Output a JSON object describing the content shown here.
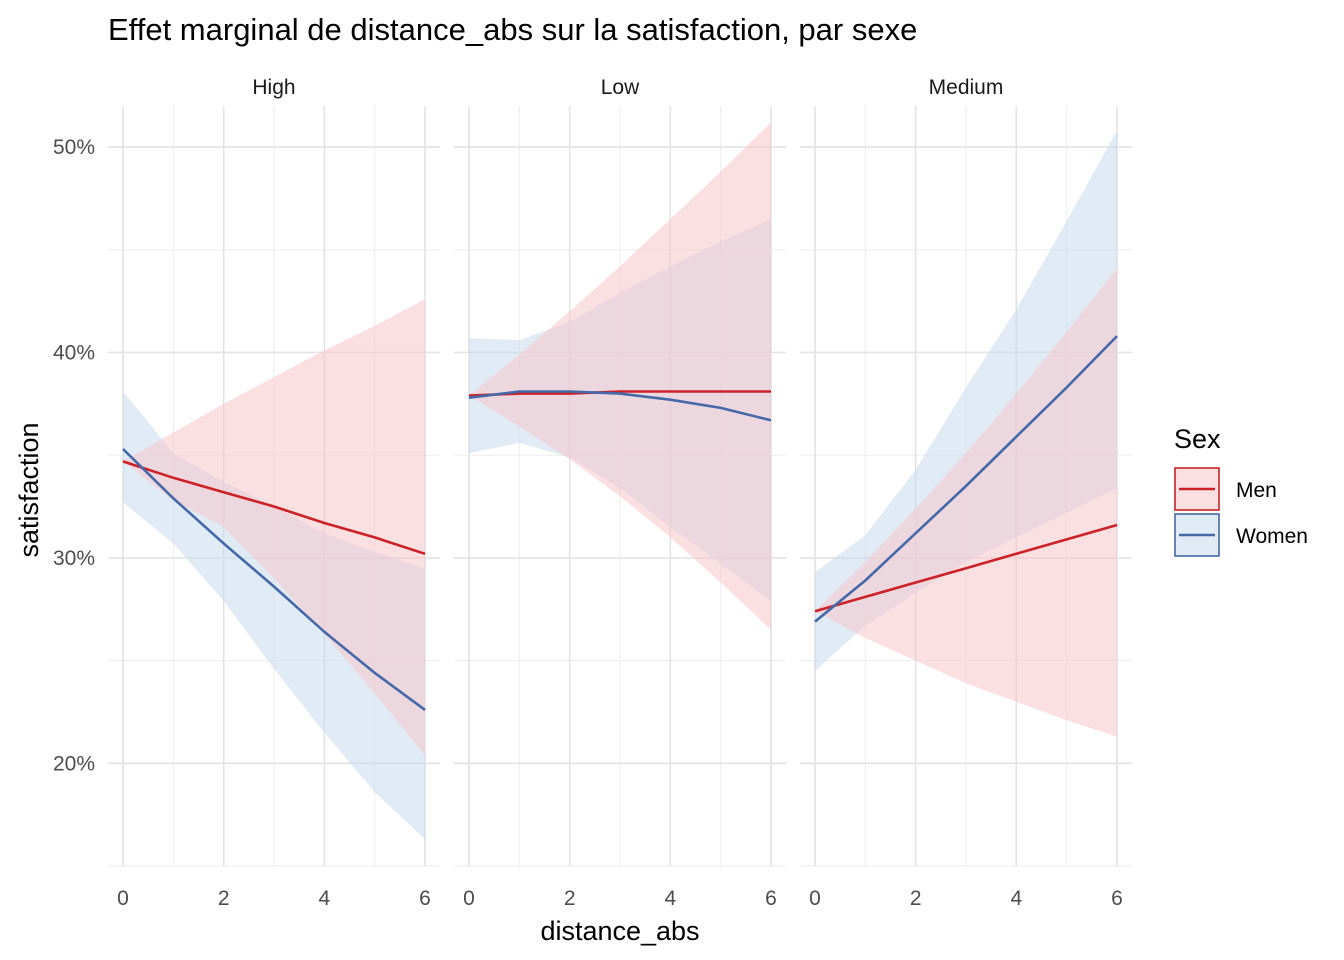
{
  "chart_data": {
    "type": "line",
    "title": "Effet marginal de distance_abs sur la satisfaction, par sexe",
    "xlabel": "distance_abs",
    "ylabel": "satisfaction",
    "xlim": [
      0,
      6
    ],
    "ylim": [
      15,
      52
    ],
    "x_ticks": [
      0,
      2,
      4,
      6
    ],
    "y_ticks": [
      20,
      30,
      40,
      50
    ],
    "y_tick_labels": [
      "20%",
      "30%",
      "40%",
      "50%"
    ],
    "grid": true,
    "legend": {
      "title": "Sex",
      "placement": "right",
      "entries": [
        {
          "label": "Men",
          "color": "#cb2127",
          "fill": "#f8c6cb"
        },
        {
          "label": "Women",
          "color": "#4468a8",
          "fill": "#c9daed"
        }
      ]
    },
    "facets": [
      {
        "panel": "High",
        "series": [
          {
            "name": "Men",
            "x": [
              0,
              1,
              2,
              3,
              4,
              5,
              6
            ],
            "y": [
              34.7,
              33.9,
              33.2,
              32.5,
              31.7,
              31.0,
              30.2
            ],
            "lower": [
              34.7,
              32.8,
              31.5,
              29.0,
              26.3,
              23.4,
              20.4
            ],
            "upper": [
              34.7,
              36.1,
              37.5,
              38.8,
              40.1,
              41.3,
              42.6
            ]
          },
          {
            "name": "Women",
            "x": [
              0,
              1,
              2,
              3,
              4,
              5,
              6
            ],
            "y": [
              35.3,
              32.9,
              30.7,
              28.6,
              26.4,
              24.4,
              22.6
            ],
            "lower": [
              32.7,
              30.7,
              27.9,
              24.6,
              21.5,
              18.6,
              16.3
            ],
            "upper": [
              38.1,
              35.1,
              33.7,
              32.5,
              31.2,
              30.3,
              29.5
            ]
          }
        ]
      },
      {
        "panel": "Low",
        "series": [
          {
            "name": "Men",
            "x": [
              0,
              1,
              2,
              3,
              4,
              5,
              6
            ],
            "y": [
              37.9,
              38.0,
              38.0,
              38.1,
              38.1,
              38.1,
              38.1
            ],
            "lower": [
              37.9,
              36.4,
              34.8,
              33.0,
              31.0,
              28.8,
              26.5
            ],
            "upper": [
              37.9,
              39.9,
              42.0,
              44.2,
              46.5,
              48.8,
              51.2
            ]
          },
          {
            "name": "Women",
            "x": [
              0,
              1,
              2,
              3,
              4,
              5,
              6
            ],
            "y": [
              37.8,
              38.1,
              38.1,
              38.0,
              37.7,
              37.3,
              36.7
            ],
            "lower": [
              35.1,
              35.6,
              34.9,
              33.4,
              31.5,
              29.7,
              27.9
            ],
            "upper": [
              40.7,
              40.6,
              41.5,
              42.9,
              44.2,
              45.4,
              46.5
            ]
          }
        ]
      },
      {
        "panel": "Medium",
        "series": [
          {
            "name": "Men",
            "x": [
              0,
              1,
              2,
              3,
              4,
              5,
              6
            ],
            "y": [
              27.4,
              28.1,
              28.8,
              29.5,
              30.2,
              30.9,
              31.6
            ],
            "lower": [
              27.4,
              26.1,
              25.0,
              23.9,
              23.0,
              22.1,
              21.3
            ],
            "upper": [
              27.4,
              29.8,
              32.4,
              35.1,
              38.0,
              41.0,
              44.1
            ]
          },
          {
            "name": "Women",
            "x": [
              0,
              1,
              2,
              3,
              4,
              5,
              6
            ],
            "y": [
              26.9,
              28.9,
              31.2,
              33.5,
              35.9,
              38.3,
              40.8
            ],
            "lower": [
              24.5,
              26.7,
              28.3,
              29.8,
              31.0,
              32.2,
              33.4
            ],
            "upper": [
              29.3,
              31.1,
              34.3,
              38.3,
              42.1,
              46.4,
              50.8
            ]
          }
        ]
      }
    ]
  }
}
